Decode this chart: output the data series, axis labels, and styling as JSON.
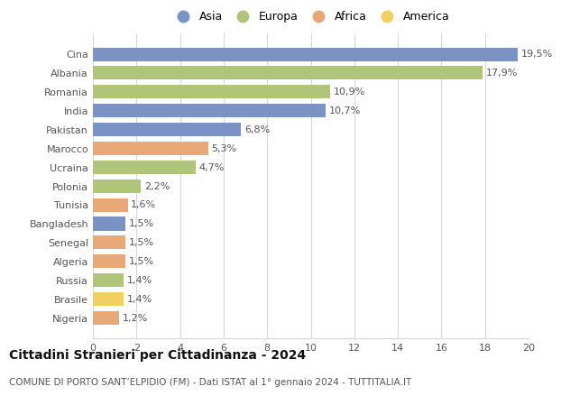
{
  "countries": [
    "Cina",
    "Albania",
    "Romania",
    "India",
    "Pakistan",
    "Marocco",
    "Ucraina",
    "Polonia",
    "Tunisia",
    "Bangladesh",
    "Senegal",
    "Algeria",
    "Russia",
    "Brasile",
    "Nigeria"
  ],
  "values": [
    19.5,
    17.9,
    10.9,
    10.7,
    6.8,
    5.3,
    4.7,
    2.2,
    1.6,
    1.5,
    1.5,
    1.5,
    1.4,
    1.4,
    1.2
  ],
  "labels": [
    "19,5%",
    "17,9%",
    "10,9%",
    "10,7%",
    "6,8%",
    "5,3%",
    "4,7%",
    "2,2%",
    "1,6%",
    "1,5%",
    "1,5%",
    "1,5%",
    "1,4%",
    "1,4%",
    "1,2%"
  ],
  "continents": [
    "Asia",
    "Europa",
    "Europa",
    "Asia",
    "Asia",
    "Africa",
    "Europa",
    "Europa",
    "Africa",
    "Asia",
    "Africa",
    "Africa",
    "Europa",
    "America",
    "Africa"
  ],
  "colors": {
    "Asia": "#7b93c4",
    "Europa": "#b0c47a",
    "Africa": "#e8a878",
    "America": "#f0d060"
  },
  "xlim": [
    0,
    20
  ],
  "xticks": [
    0,
    2,
    4,
    6,
    8,
    10,
    12,
    14,
    16,
    18,
    20
  ],
  "title": "Cittadini Stranieri per Cittadinanza - 2024",
  "subtitle": "COMUNE DI PORTO SANT’ELPIDIO (FM) - Dati ISTAT al 1° gennaio 2024 - TUTTITALIA.IT",
  "background_color": "#ffffff",
  "grid_color": "#d8d8d8",
  "bar_height": 0.72,
  "title_fontsize": 10,
  "subtitle_fontsize": 7.5,
  "label_fontsize": 8,
  "tick_fontsize": 8,
  "legend_fontsize": 9
}
